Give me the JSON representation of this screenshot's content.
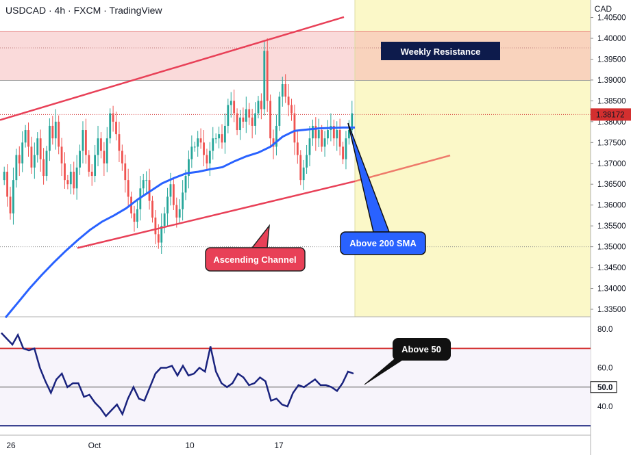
{
  "header": {
    "title": "USDCAD · 4h · FXCM · TradingView",
    "currency": "CAD"
  },
  "chart_data": [
    {
      "type": "candlestick",
      "symbol": "USDCAD",
      "timeframe": "4h",
      "source": "FXCM",
      "ylim": [
        1.33,
        1.406
      ],
      "y_ticks": [
        "1.33500",
        "1.34000",
        "1.34500",
        "1.35000",
        "1.35500",
        "1.36000",
        "1.36500",
        "1.37000",
        "1.37500",
        "1.38000",
        "1.38500",
        "1.39000",
        "1.39500",
        "1.40000",
        "1.40500"
      ],
      "x_ticks": [
        "26",
        "Oct",
        "10",
        "17"
      ],
      "last_price": "1.38172",
      "colors": {
        "up": "#26a69a",
        "down": "#ef5350",
        "sma": "#2962ff",
        "channel": "#e84057",
        "resistance_zone": "#f9c4c4",
        "projection_zone": "#fbf8c8"
      },
      "candles_close": [
        1.368,
        1.362,
        1.358,
        1.366,
        1.372,
        1.37,
        1.375,
        1.378,
        1.374,
        1.369,
        1.372,
        1.376,
        1.371,
        1.367,
        1.373,
        1.379,
        1.376,
        1.38,
        1.374,
        1.37,
        1.366,
        1.365,
        1.368,
        1.364,
        1.369,
        1.373,
        1.378,
        1.372,
        1.368,
        1.367,
        1.372,
        1.376,
        1.373,
        1.37,
        1.376,
        1.382,
        1.38,
        1.377,
        1.373,
        1.37,
        1.366,
        1.362,
        1.358,
        1.356,
        1.359,
        1.364,
        1.366,
        1.366,
        1.361,
        1.357,
        1.353,
        1.351,
        1.355,
        1.358,
        1.362,
        1.365,
        1.36,
        1.357,
        1.359,
        1.363,
        1.367,
        1.371,
        1.374,
        1.374,
        1.376,
        1.375,
        1.372,
        1.37,
        1.373,
        1.376,
        1.376,
        1.377,
        1.375,
        1.379,
        1.384,
        1.385,
        1.382,
        1.378,
        1.381,
        1.38,
        1.383,
        1.381,
        1.379,
        1.382,
        1.385,
        1.383,
        1.397,
        1.385,
        1.376,
        1.374,
        1.379,
        1.386,
        1.389,
        1.386,
        1.384,
        1.382,
        1.375,
        1.372,
        1.366,
        1.369,
        1.372,
        1.376,
        1.379,
        1.376,
        1.378,
        1.374,
        1.376,
        1.378,
        1.379,
        1.376,
        1.378,
        1.374,
        1.371,
        1.376,
        1.378,
        1.382
      ],
      "sma_200": [
        1.333,
        1.3365,
        1.34,
        1.3432,
        1.3462,
        1.349,
        1.3516,
        1.354,
        1.356,
        1.3575,
        1.3592,
        1.3614,
        1.3633,
        1.3652,
        1.3665,
        1.3676,
        1.368,
        1.3686,
        1.3691,
        1.3705,
        1.3717,
        1.3726,
        1.374,
        1.3764,
        1.3778,
        1.3781,
        1.3784,
        1.3785,
        1.3786,
        1.3786
      ],
      "channel_upper": [
        [
          0,
          1.3804
        ],
        [
          100,
          1.4051
        ]
      ],
      "channel_lower": [
        [
          18,
          1.3497
        ],
        [
          100,
          1.3719
        ]
      ],
      "resistance_zone": [
        1.3899,
        1.4016
      ],
      "rsi": {
        "ylim": [
          25,
          87
        ],
        "y_ticks": [
          "40.0",
          "60.0",
          "80.0"
        ],
        "levels": [
          70,
          50,
          30
        ],
        "label": "50.0",
        "values": [
          78,
          75,
          72,
          77,
          70,
          69,
          70,
          60,
          53,
          47,
          54,
          57,
          50,
          52,
          52,
          45,
          46,
          42,
          39,
          35,
          38,
          41,
          36,
          44,
          50,
          44,
          43,
          50,
          57,
          60,
          60,
          61,
          56,
          61,
          56,
          57,
          60,
          58,
          71,
          58,
          52,
          50,
          52,
          57,
          55,
          51,
          52,
          55,
          53,
          43,
          44,
          41,
          40,
          47,
          51,
          50,
          52,
          54,
          51,
          51,
          50,
          48,
          52,
          58,
          57
        ]
      }
    }
  ],
  "annotations": {
    "weekly_resistance": "Weekly Resistance",
    "ascending_channel": "Ascending Channel",
    "above_200_sma": "Above 200 SMA",
    "above_50": "Above 50"
  }
}
